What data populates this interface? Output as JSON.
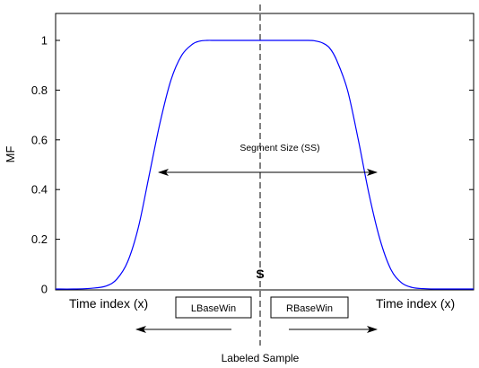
{
  "chart_data": {
    "type": "line",
    "xlabel": "",
    "ylabel": "MF",
    "ylim": [
      0,
      1.1
    ],
    "yticks": [
      0,
      0.2,
      0.4,
      0.6,
      0.8,
      1
    ],
    "ytick_labels": [
      "0",
      "0.2",
      "0.4",
      "0.6",
      "0.8",
      "1"
    ],
    "grid": false,
    "series": [
      {
        "color": "#0000ff",
        "curve": "trapezoidal membership function",
        "x": [
          0,
          0.05,
          0.1,
          0.14,
          0.17,
          0.2,
          0.23,
          0.26,
          0.29,
          0.32,
          0.35,
          0.38,
          0.4,
          0.42,
          0.44,
          0.46,
          0.6,
          0.7,
          0.72,
          0.74,
          0.76,
          0.78,
          0.81,
          0.84,
          0.87,
          0.9,
          0.93,
          0.96,
          0.99,
          1.02,
          1.05,
          1.1,
          1.16
        ],
        "y": [
          0.0,
          0.0,
          0.003,
          0.012,
          0.04,
          0.11,
          0.25,
          0.46,
          0.67,
          0.84,
          0.94,
          0.985,
          0.997,
          1.0,
          1.0,
          1.0,
          1.0,
          1.0,
          0.998,
          0.99,
          0.97,
          0.92,
          0.8,
          0.6,
          0.38,
          0.2,
          0.08,
          0.025,
          0.006,
          0.0015,
          0.0,
          0.0,
          0.0
        ]
      }
    ],
    "annotations": {
      "segment_size": "Segment Size (SS)",
      "center_marker": "S",
      "time_index_left": "Time index  (x)",
      "time_index_right": "Time index  (x)",
      "left_box": "LBaseWin",
      "right_box": "RBaseWin",
      "labeled_sample": "Labeled Sample"
    }
  }
}
